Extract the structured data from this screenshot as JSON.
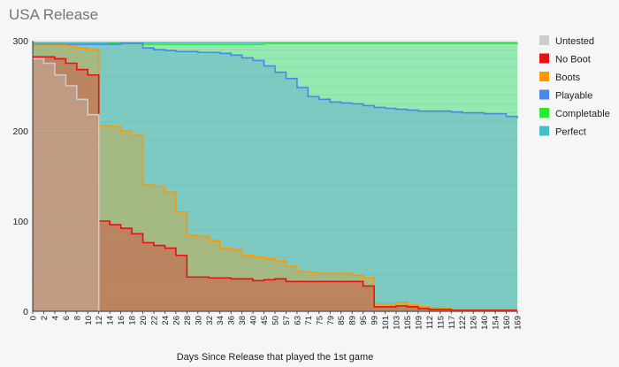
{
  "chart_data": {
    "type": "area",
    "title": "USA Release",
    "xlabel": "Days Since Release that played the 1st game",
    "ylabel": "",
    "ylim": [
      0,
      300
    ],
    "yticks": [
      0,
      100,
      200,
      300
    ],
    "xtick_labels": [
      "0",
      "2",
      "4",
      "6",
      "8",
      "10",
      "12",
      "14",
      "16",
      "18",
      "20",
      "22",
      "24",
      "26",
      "28",
      "30",
      "32",
      "34",
      "36",
      "38",
      "40",
      "45",
      "50",
      "57",
      "63",
      "71",
      "75",
      "79",
      "85",
      "89",
      "95",
      "99",
      "101",
      "103",
      "105",
      "109",
      "112",
      "115",
      "117",
      "122",
      "126",
      "140",
      "154",
      "160",
      "169"
    ],
    "legend_position": "right",
    "grid": true,
    "series": [
      {
        "name": "Perfect",
        "color": "#45bfc7",
        "values": [
          298,
          298,
          298,
          298,
          298,
          298,
          298,
          298,
          298,
          298,
          298,
          298,
          298,
          298,
          298,
          298,
          298,
          298,
          298,
          298,
          298,
          298,
          298,
          298,
          298,
          298,
          298,
          298,
          298,
          298,
          298,
          298,
          298,
          298,
          298,
          298,
          298,
          298,
          298,
          298,
          298,
          298,
          298,
          298,
          298
        ]
      },
      {
        "name": "Completable",
        "color": "#2ee82e",
        "values": [
          296,
          296,
          296,
          296,
          296,
          296,
          296,
          297,
          297,
          297,
          296,
          296,
          296,
          296,
          296,
          296,
          296,
          296,
          296,
          296,
          296,
          297,
          297,
          297,
          297,
          297,
          297,
          297,
          297,
          297,
          297,
          297,
          297,
          297,
          297,
          297,
          297,
          297,
          297,
          297,
          297,
          297,
          297,
          297,
          296
        ]
      },
      {
        "name": "Playable",
        "color": "#4a88e8",
        "values": [
          296,
          296,
          296,
          296,
          296,
          296,
          296,
          296,
          297,
          297,
          292,
          290,
          289,
          288,
          288,
          287,
          287,
          286,
          284,
          281,
          278,
          272,
          265,
          258,
          248,
          238,
          235,
          232,
          231,
          230,
          228,
          226,
          225,
          224,
          223,
          222,
          222,
          222,
          221,
          220,
          220,
          219,
          219,
          216,
          214
        ]
      },
      {
        "name": "Boots",
        "color": "#ff9800",
        "values": [
          295,
          295,
          295,
          294,
          292,
          290,
          206,
          205,
          200,
          195,
          140,
          138,
          132,
          110,
          84,
          83,
          78,
          70,
          68,
          62,
          60,
          58,
          56,
          50,
          44,
          43,
          42,
          42,
          42,
          40,
          37,
          8,
          8,
          10,
          7,
          5,
          4,
          3,
          2,
          2,
          2,
          2,
          2,
          2,
          2
        ]
      },
      {
        "name": "No Boot",
        "color": "#e81010",
        "values": [
          282,
          282,
          280,
          275,
          268,
          262,
          100,
          96,
          92,
          86,
          76,
          73,
          70,
          62,
          38,
          38,
          37,
          37,
          36,
          36,
          34,
          35,
          36,
          33,
          33,
          33,
          33,
          33,
          33,
          33,
          28,
          5,
          5,
          6,
          5,
          3,
          2,
          2,
          1,
          1,
          1,
          1,
          1,
          1,
          1
        ]
      },
      {
        "name": "Untested",
        "color": "#cccccc",
        "values": [
          280,
          275,
          262,
          250,
          235,
          218,
          0,
          0,
          0,
          0,
          0,
          0,
          0,
          0,
          0,
          0,
          0,
          0,
          0,
          0,
          0,
          0,
          0,
          0,
          0,
          0,
          0,
          0,
          0,
          0,
          0,
          0,
          0,
          0,
          0,
          0,
          0,
          0,
          0,
          0,
          0,
          0,
          0,
          0,
          0
        ]
      }
    ]
  }
}
